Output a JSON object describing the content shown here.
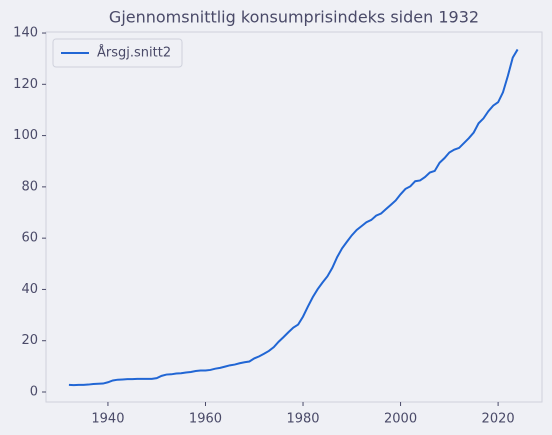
{
  "chart_data": {
    "type": "line",
    "title": "Gjennomsnittlig konsumprisindeks siden 1932",
    "x": [
      1932,
      1933,
      1934,
      1935,
      1936,
      1937,
      1938,
      1939,
      1940,
      1941,
      1942,
      1943,
      1944,
      1945,
      1946,
      1947,
      1948,
      1949,
      1950,
      1951,
      1952,
      1953,
      1954,
      1955,
      1956,
      1957,
      1958,
      1959,
      1960,
      1961,
      1962,
      1963,
      1964,
      1965,
      1966,
      1967,
      1968,
      1969,
      1970,
      1971,
      1972,
      1973,
      1974,
      1975,
      1976,
      1977,
      1978,
      1979,
      1980,
      1981,
      1982,
      1983,
      1984,
      1985,
      1986,
      1987,
      1988,
      1989,
      1990,
      1991,
      1992,
      1993,
      1994,
      1995,
      1996,
      1997,
      1998,
      1999,
      2000,
      2001,
      2002,
      2003,
      2004,
      2005,
      2006,
      2007,
      2008,
      2009,
      2010,
      2011,
      2012,
      2013,
      2014,
      2015,
      2016,
      2017,
      2018,
      2019,
      2020,
      2021,
      2022,
      2023,
      2024
    ],
    "series": [
      {
        "name": "Årsgj.snitt2",
        "color": "#2166d4",
        "values": [
          2.8,
          2.7,
          2.8,
          2.8,
          2.9,
          3.1,
          3.2,
          3.3,
          3.8,
          4.5,
          4.8,
          4.9,
          5.0,
          5.0,
          5.1,
          5.1,
          5.1,
          5.1,
          5.4,
          6.3,
          6.8,
          6.9,
          7.2,
          7.3,
          7.6,
          7.8,
          8.2,
          8.4,
          8.4,
          8.6,
          9.1,
          9.4,
          9.9,
          10.4,
          10.7,
          11.2,
          11.6,
          11.9,
          13.1,
          13.9,
          14.9,
          16.0,
          17.5,
          19.6,
          21.4,
          23.3,
          25.1,
          26.3,
          29.4,
          33.3,
          37.0,
          40.1,
          42.7,
          45.1,
          48.4,
          52.6,
          56.0,
          58.6,
          61.1,
          63.2,
          64.7,
          66.2,
          67.1,
          68.8,
          69.6,
          71.3,
          73.0,
          74.7,
          77.1,
          79.2,
          80.2,
          82.2,
          82.5,
          83.8,
          85.6,
          86.2,
          89.4,
          91.2,
          93.4,
          94.5,
          95.2,
          97.1,
          99.0,
          101.2,
          104.8,
          106.7,
          109.5,
          111.7,
          113.0,
          116.9,
          123.3,
          130.4,
          133.6
        ]
      }
    ],
    "xlim": [
      1927.3,
      2029
    ],
    "ylim": [
      -3.9,
      140.4
    ],
    "xticks": [
      1940,
      1960,
      1980,
      2000,
      2020
    ],
    "yticks": [
      0,
      20,
      40,
      60,
      80,
      100,
      120,
      140
    ],
    "grid": false,
    "legend": "upper left"
  }
}
